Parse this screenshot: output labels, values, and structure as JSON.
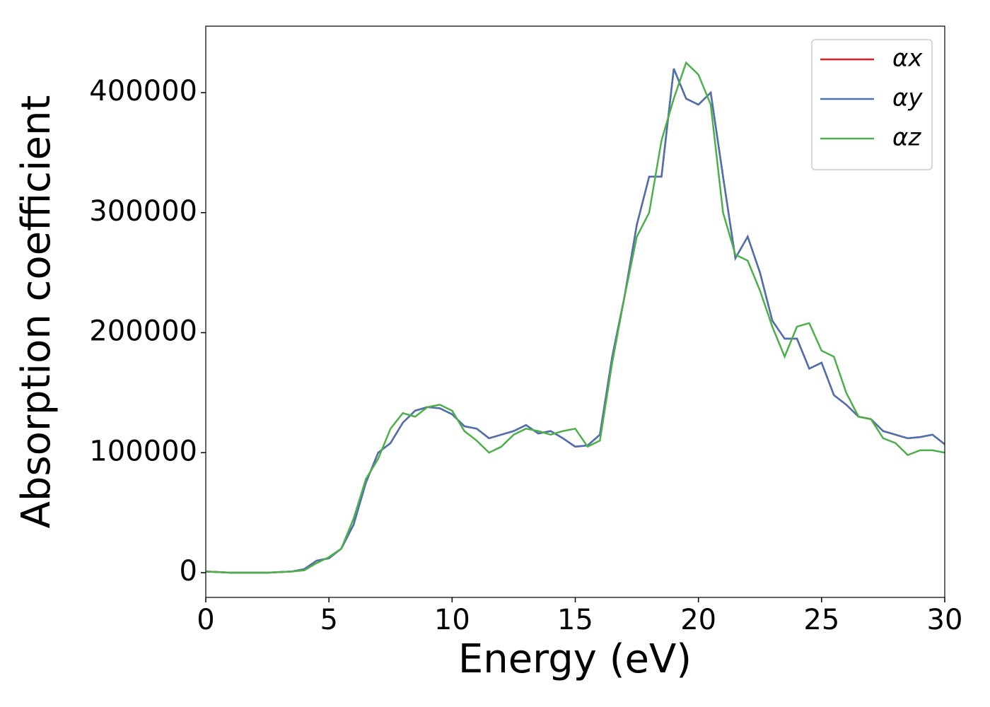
{
  "chart_data": {
    "type": "line",
    "xlabel": "Energy (eV)",
    "ylabel": "Absorption coefficient",
    "x": [
      0,
      0.5,
      1,
      1.5,
      2,
      2.5,
      3,
      3.5,
      4,
      4.5,
      5,
      5.5,
      6,
      6.5,
      7,
      7.5,
      8,
      8.5,
      9,
      9.5,
      10,
      10.5,
      11,
      11.5,
      12,
      12.5,
      13,
      13.5,
      14,
      14.5,
      15,
      15.5,
      16,
      16.5,
      17,
      17.5,
      18,
      18.5,
      19,
      19.5,
      20,
      20.5,
      21,
      21.5,
      22,
      22.5,
      23,
      23.5,
      24,
      24.5,
      25,
      25.5,
      26,
      26.5,
      27,
      27.5,
      28,
      28.5,
      29,
      29.5,
      30
    ],
    "series": [
      {
        "name": "αx",
        "color": "#e41a1c",
        "values": [
          1000,
          500,
          0,
          0,
          0,
          0,
          500,
          1000,
          3000,
          10000,
          12000,
          20000,
          40000,
          75000,
          100000,
          108000,
          125000,
          135000,
          138000,
          137000,
          132000,
          122000,
          120000,
          112000,
          115000,
          118000,
          123000,
          116000,
          118000,
          112000,
          105000,
          106000,
          115000,
          180000,
          230000,
          290000,
          330000,
          330000,
          420000,
          395000,
          390000,
          400000,
          330000,
          262000,
          280000,
          250000,
          210000,
          195000,
          195000,
          170000,
          175000,
          148000,
          140000,
          130000,
          128000,
          118000,
          115000,
          112000,
          113000,
          115000,
          107000
        ]
      },
      {
        "name": "αy",
        "color": "#4a72b0",
        "values": [
          1000,
          500,
          0,
          0,
          0,
          0,
          500,
          1000,
          3000,
          10000,
          12000,
          20000,
          40000,
          75000,
          100000,
          108000,
          125000,
          135000,
          138000,
          137000,
          132000,
          122000,
          120000,
          112000,
          115000,
          118000,
          123000,
          116000,
          118000,
          112000,
          105000,
          106000,
          115000,
          180000,
          230000,
          290000,
          330000,
          330000,
          420000,
          395000,
          390000,
          400000,
          330000,
          262000,
          280000,
          250000,
          210000,
          195000,
          195000,
          170000,
          175000,
          148000,
          140000,
          130000,
          128000,
          118000,
          115000,
          112000,
          113000,
          115000,
          107000
        ]
      },
      {
        "name": "αz",
        "color": "#4daf4a",
        "values": [
          1000,
          500,
          0,
          0,
          0,
          0,
          500,
          1000,
          2000,
          8000,
          13000,
          20000,
          45000,
          78000,
          95000,
          120000,
          133000,
          130000,
          138000,
          140000,
          135000,
          118000,
          110000,
          100000,
          105000,
          115000,
          120000,
          118000,
          115000,
          118000,
          120000,
          105000,
          110000,
          175000,
          230000,
          280000,
          300000,
          360000,
          395000,
          425000,
          415000,
          390000,
          300000,
          265000,
          260000,
          235000,
          205000,
          180000,
          205000,
          208000,
          185000,
          180000,
          150000,
          130000,
          128000,
          112000,
          108000,
          98000,
          102000,
          102000,
          100000
        ]
      }
    ],
    "xlim": [
      0,
      30
    ],
    "xticks": [
      0,
      5,
      10,
      15,
      20,
      25,
      30
    ],
    "ylim": [
      -20600,
      455400
    ],
    "yticks": [
      0,
      100000,
      200000,
      300000,
      400000
    ],
    "legend": "upper right"
  }
}
